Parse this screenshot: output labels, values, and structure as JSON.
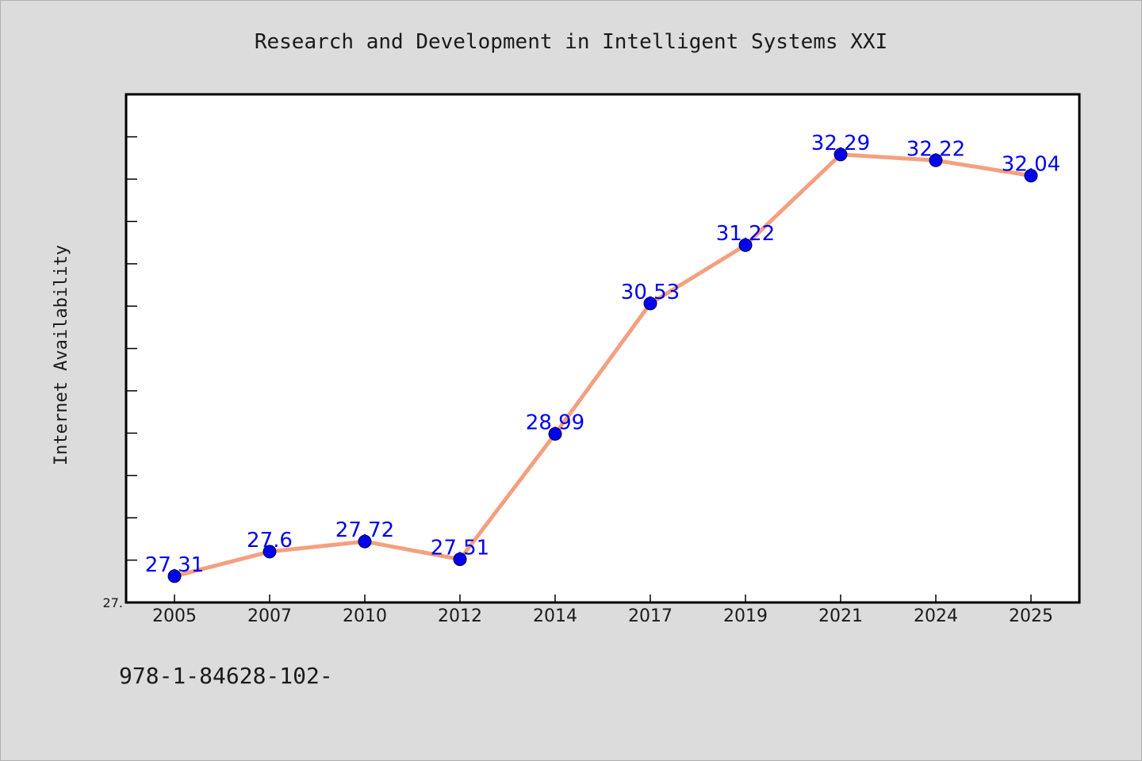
{
  "chart_data": {
    "type": "line",
    "title": "Research and Development in Intelligent Systems XXI",
    "ylabel": "Internet Availability",
    "xlabel": "",
    "categories": [
      "2005",
      "2007",
      "2010",
      "2012",
      "2014",
      "2017",
      "2019",
      "2021",
      "2024",
      "2025"
    ],
    "series": [
      {
        "values": [
          27.31,
          27.6,
          27.72,
          27.51,
          28.99,
          30.53,
          31.22,
          32.29,
          32.22,
          32.04
        ],
        "labels": [
          "27.31",
          "27.6",
          "27.72",
          "27.51",
          "28.99",
          "30.53",
          "31.22",
          "32.29",
          "32.22",
          "32.04"
        ]
      }
    ],
    "ylim": [
      27.0,
      33.0
    ],
    "y_tick_label": "27.",
    "grid": false,
    "legend": "none",
    "line_color": "#f4a080",
    "marker_color": "#0000ee",
    "label_color": "#0000ee",
    "plot_background": "#ffffff",
    "page_background": "#dcdcdc"
  },
  "footnote": "978-1-84628-102-"
}
